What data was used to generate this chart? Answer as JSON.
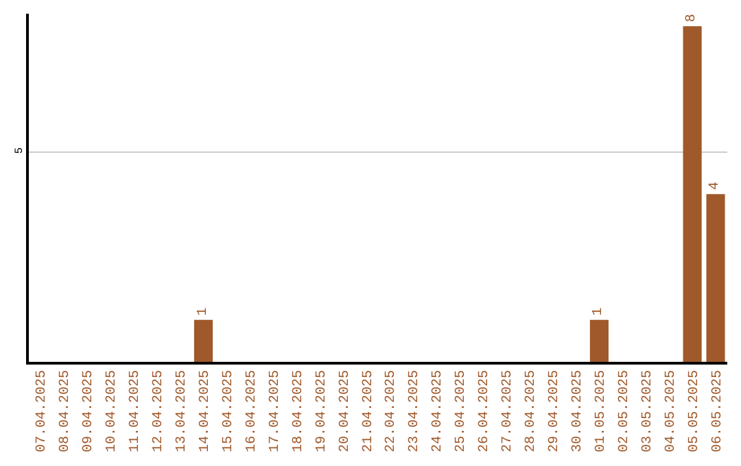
{
  "chart_data": {
    "type": "bar",
    "categories": [
      "07.04.2025",
      "08.04.2025",
      "09.04.2025",
      "10.04.2025",
      "11.04.2025",
      "12.04.2025",
      "13.04.2025",
      "14.04.2025",
      "15.04.2025",
      "16.04.2025",
      "17.04.2025",
      "18.04.2025",
      "19.04.2025",
      "20.04.2025",
      "21.04.2025",
      "22.04.2025",
      "23.04.2025",
      "24.04.2025",
      "25.04.2025",
      "26.04.2025",
      "27.04.2025",
      "28.04.2025",
      "29.04.2025",
      "30.04.2025",
      "01.05.2025",
      "02.05.2025",
      "03.05.2025",
      "04.05.2025",
      "05.05.2025",
      "06.05.2025"
    ],
    "values": [
      0,
      0,
      0,
      0,
      0,
      0,
      0,
      1,
      0,
      0,
      0,
      0,
      0,
      0,
      0,
      0,
      0,
      0,
      0,
      0,
      0,
      0,
      0,
      0,
      1,
      0,
      0,
      0,
      8,
      4
    ],
    "value_labels": [
      null,
      null,
      null,
      null,
      null,
      null,
      null,
      "1",
      null,
      null,
      null,
      null,
      null,
      null,
      null,
      null,
      null,
      null,
      null,
      null,
      null,
      null,
      null,
      null,
      "1",
      null,
      null,
      null,
      "8",
      "4"
    ],
    "color": "#a0592a",
    "ylim": [
      0,
      8.3
    ],
    "yticks": [
      5
    ],
    "grid": "y",
    "legend": false
  }
}
